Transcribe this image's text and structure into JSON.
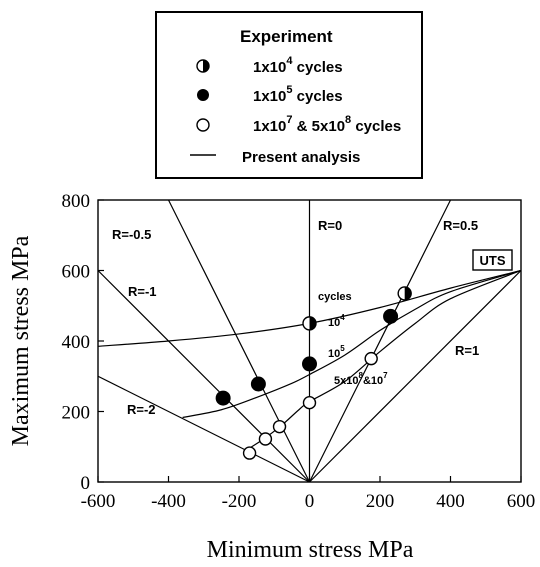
{
  "chart_data": {
    "type": "scatter",
    "xlabel": "Minimum stress  MPa",
    "ylabel": "Maximum stress  MPa",
    "xlim": [
      -600,
      600
    ],
    "ylim": [
      0,
      800
    ],
    "xticks": [
      "-600",
      "-400",
      "-200",
      "0",
      "200",
      "400",
      "600"
    ],
    "yticks": [
      "0",
      "200",
      "400",
      "600",
      "800"
    ],
    "legend": {
      "title": "Experiment",
      "entries": [
        {
          "label": "1x10",
          "exp": "4",
          "suffix": " cycles",
          "marker": "half"
        },
        {
          "label": "1x10",
          "exp": "5",
          "suffix": " cycles",
          "marker": "filled"
        },
        {
          "label": "1x10",
          "exp": "7",
          "suffix": " & 5x10",
          "exp2": "8",
          "suffix2": " cycles",
          "marker": "open"
        },
        {
          "label": "Present analysis",
          "marker": "line"
        }
      ]
    },
    "series": [
      {
        "marker": "half",
        "points": [
          [
            0,
            450
          ],
          [
            270,
            535
          ]
        ]
      },
      {
        "marker": "filled",
        "points": [
          [
            -245,
            238
          ],
          [
            -145,
            278
          ],
          [
            0,
            335
          ],
          [
            230,
            470
          ]
        ]
      },
      {
        "marker": "open",
        "points": [
          [
            -170,
            82
          ],
          [
            -125,
            122
          ],
          [
            -85,
            157
          ],
          [
            0,
            225
          ],
          [
            175,
            350
          ]
        ]
      }
    ],
    "ratio_lines": [
      {
        "label": "R=-0.5",
        "r": -0.5
      },
      {
        "label": "R=-1",
        "r": -1
      },
      {
        "label": "R=-2",
        "r": -2
      },
      {
        "label": "R=0",
        "r": 0
      },
      {
        "label": "R=0.5",
        "r": 0.5
      },
      {
        "label": "R=1",
        "r": 1
      }
    ],
    "curves": [
      {
        "label": "10",
        "exp": "4",
        "points": [
          [
            -600,
            385
          ],
          [
            -400,
            400
          ],
          [
            -200,
            420
          ],
          [
            0,
            450
          ],
          [
            200,
            495
          ],
          [
            400,
            550
          ],
          [
            600,
            600
          ]
        ]
      },
      {
        "label": "10",
        "exp": "5",
        "points": [
          [
            -360,
            183
          ],
          [
            -250,
            205
          ],
          [
            -150,
            240
          ],
          [
            -50,
            280
          ],
          [
            0,
            305
          ],
          [
            100,
            360
          ],
          [
            200,
            430
          ],
          [
            300,
            490
          ],
          [
            400,
            540
          ],
          [
            600,
            600
          ]
        ]
      },
      {
        "label": "5x10",
        "exp": "8",
        "suffix": "&10",
        "exp2": "7",
        "points": [
          [
            -180,
            90
          ],
          [
            -130,
            122
          ],
          [
            -80,
            160
          ],
          [
            -30,
            205
          ],
          [
            0,
            228
          ],
          [
            100,
            285
          ],
          [
            200,
            370
          ],
          [
            300,
            450
          ],
          [
            400,
            520
          ],
          [
            600,
            600
          ]
        ]
      }
    ],
    "annotations": {
      "cycles": "cycles",
      "uts": "UTS"
    }
  }
}
